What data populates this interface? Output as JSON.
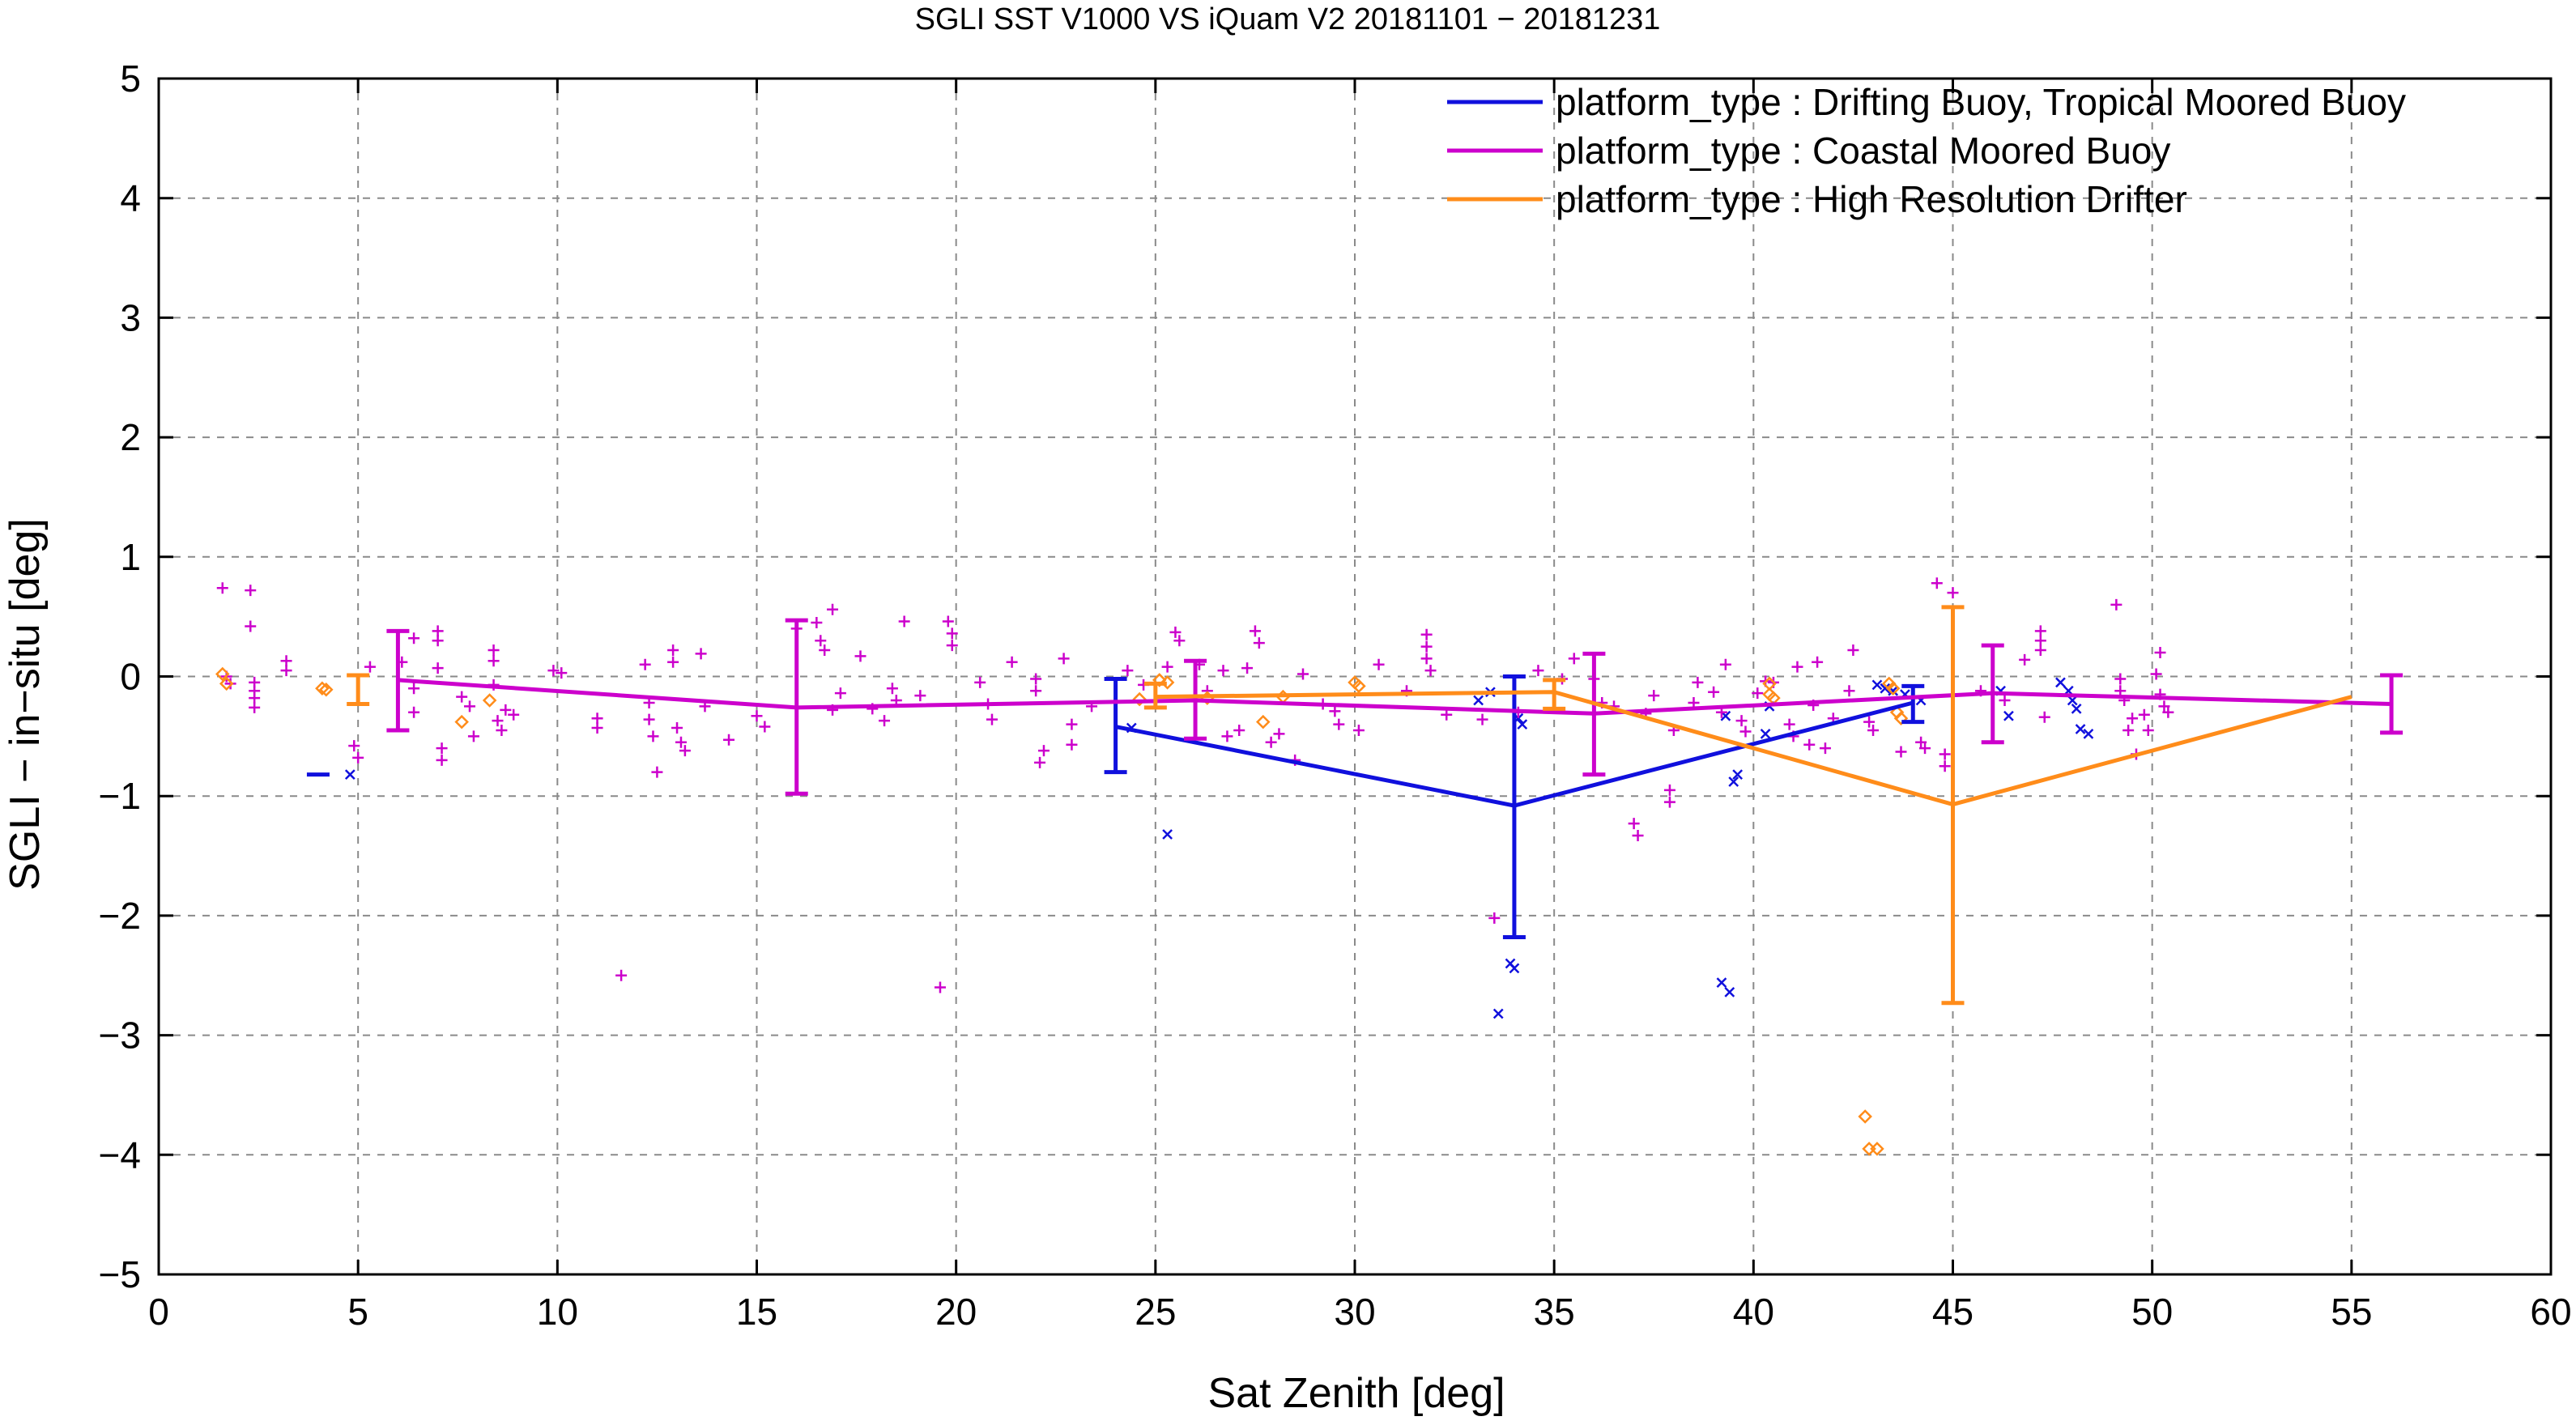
{
  "chart_data": {
    "type": "scatter",
    "title": "SGLI SST V1000 VS iQuam V2 20181101 − 20181231",
    "xlabel": "Sat Zenith [deg]",
    "ylabel": "SGLI − in−situ [deg]",
    "xlim": [
      0,
      60
    ],
    "ylim": [
      -5,
      5
    ],
    "grid": true,
    "legend_position": "top-right",
    "x_ticks": [
      0,
      5,
      10,
      15,
      20,
      25,
      30,
      35,
      40,
      45,
      50,
      55,
      60
    ],
    "x_tick_labels": [
      "0",
      "5",
      "10",
      "15",
      "20",
      "25",
      "30",
      "35",
      "40",
      "45",
      "50",
      "55",
      "60"
    ],
    "y_ticks": [
      -5,
      -4,
      -3,
      -2,
      -1,
      0,
      1,
      2,
      3,
      4,
      5
    ],
    "y_tick_labels": [
      "−5",
      "−4",
      "−3",
      "−2",
      "−1",
      "0",
      "1",
      "2",
      "3",
      "4",
      "5"
    ],
    "series": [
      {
        "name": "platform_type : Drifting Buoy, Tropical Moored Buoy",
        "color": "#1010dd",
        "marker": "x",
        "line": [
          [
            24,
            -0.42
          ],
          [
            34,
            -1.08
          ],
          [
            44,
            -0.22
          ]
        ],
        "errorbars": [
          {
            "x": 4.0,
            "low": -0.82,
            "high": -0.82
          },
          {
            "x": 24.0,
            "low": -0.8,
            "high": -0.02
          },
          {
            "x": 34.0,
            "low": -2.18,
            "high": 0.0
          },
          {
            "x": 44.0,
            "low": -0.38,
            "high": -0.08
          }
        ],
        "points": [
          [
            4.8,
            -0.82
          ],
          [
            24.4,
            -0.43
          ],
          [
            25.3,
            -1.32
          ],
          [
            33.1,
            -0.2
          ],
          [
            33.4,
            -0.13
          ],
          [
            33.6,
            -2.82
          ],
          [
            33.9,
            -2.4
          ],
          [
            34.0,
            -2.44
          ],
          [
            34.1,
            -0.35
          ],
          [
            34.2,
            -0.4
          ],
          [
            39.2,
            -2.56
          ],
          [
            39.4,
            -2.64
          ],
          [
            39.5,
            -0.88
          ],
          [
            39.6,
            -0.82
          ],
          [
            39.3,
            -0.33
          ],
          [
            40.3,
            -0.48
          ],
          [
            40.4,
            -0.25
          ],
          [
            43.1,
            -0.07
          ],
          [
            43.3,
            -0.1
          ],
          [
            43.5,
            -0.12
          ],
          [
            43.8,
            -0.15
          ],
          [
            44.2,
            -0.2
          ],
          [
            46.2,
            -0.12
          ],
          [
            46.4,
            -0.33
          ],
          [
            47.7,
            -0.05
          ],
          [
            47.9,
            -0.12
          ],
          [
            48.0,
            -0.2
          ],
          [
            48.1,
            -0.27
          ],
          [
            48.2,
            -0.44
          ],
          [
            48.4,
            -0.48
          ]
        ]
      },
      {
        "name": "platform_type : Coastal Moored Buoy",
        "color": "#cc00cc",
        "marker": "+",
        "line": [
          [
            6,
            -0.03
          ],
          [
            16,
            -0.26
          ],
          [
            26,
            -0.2
          ],
          [
            36,
            -0.31
          ],
          [
            46,
            -0.14
          ],
          [
            56,
            -0.23
          ]
        ],
        "errorbars": [
          {
            "x": 6.0,
            "low": -0.45,
            "high": 0.38
          },
          {
            "x": 16.0,
            "low": -0.98,
            "high": 0.47
          },
          {
            "x": 26.0,
            "low": -0.52,
            "high": 0.13
          },
          {
            "x": 36.0,
            "low": -0.82,
            "high": 0.19
          },
          {
            "x": 46.0,
            "low": -0.55,
            "high": 0.26
          },
          {
            "x": 56.0,
            "low": -0.47,
            "high": 0.01
          }
        ],
        "points": [
          [
            1.6,
            0.74
          ],
          [
            1.7,
            0.0
          ],
          [
            1.8,
            -0.06
          ],
          [
            2.3,
            0.72
          ],
          [
            2.3,
            0.42
          ],
          [
            2.4,
            -0.05
          ],
          [
            2.4,
            -0.12
          ],
          [
            2.4,
            -0.18
          ],
          [
            2.4,
            -0.26
          ],
          [
            3.2,
            0.13
          ],
          [
            3.2,
            0.05
          ],
          [
            4.9,
            -0.58
          ],
          [
            5.0,
            -0.68
          ],
          [
            5.3,
            0.08
          ],
          [
            6.1,
            0.12
          ],
          [
            6.4,
            0.32
          ],
          [
            6.4,
            -0.1
          ],
          [
            6.4,
            -0.3
          ],
          [
            7.0,
            0.38
          ],
          [
            7.0,
            0.3
          ],
          [
            7.0,
            0.07
          ],
          [
            7.1,
            -0.6
          ],
          [
            7.1,
            -0.7
          ],
          [
            7.6,
            -0.17
          ],
          [
            7.8,
            -0.25
          ],
          [
            7.9,
            -0.5
          ],
          [
            8.4,
            0.22
          ],
          [
            8.4,
            0.13
          ],
          [
            8.4,
            -0.07
          ],
          [
            8.5,
            -0.37
          ],
          [
            8.6,
            -0.45
          ],
          [
            8.7,
            -0.28
          ],
          [
            8.9,
            -0.32
          ],
          [
            9.9,
            0.05
          ],
          [
            10.1,
            0.03
          ],
          [
            11.0,
            -0.35
          ],
          [
            11.0,
            -0.43
          ],
          [
            11.6,
            -2.5
          ],
          [
            12.2,
            0.1
          ],
          [
            12.3,
            -0.22
          ],
          [
            12.3,
            -0.36
          ],
          [
            12.4,
            -0.5
          ],
          [
            12.5,
            -0.8
          ],
          [
            12.9,
            0.22
          ],
          [
            12.9,
            0.12
          ],
          [
            13.0,
            -0.43
          ],
          [
            13.1,
            -0.55
          ],
          [
            13.2,
            -0.62
          ],
          [
            13.6,
            0.19
          ],
          [
            13.7,
            -0.25
          ],
          [
            14.3,
            -0.53
          ],
          [
            15.0,
            -0.33
          ],
          [
            15.2,
            -0.42
          ],
          [
            16.0,
            0.4
          ],
          [
            16.5,
            0.45
          ],
          [
            16.6,
            0.3
          ],
          [
            16.7,
            0.22
          ],
          [
            16.9,
            0.56
          ],
          [
            16.9,
            -0.28
          ],
          [
            17.1,
            -0.14
          ],
          [
            17.6,
            0.17
          ],
          [
            17.9,
            -0.27
          ],
          [
            18.2,
            -0.37
          ],
          [
            18.4,
            -0.1
          ],
          [
            18.5,
            -0.2
          ],
          [
            18.7,
            0.46
          ],
          [
            19.1,
            -0.16
          ],
          [
            19.6,
            -2.6
          ],
          [
            19.8,
            0.46
          ],
          [
            19.9,
            0.36
          ],
          [
            19.9,
            0.26
          ],
          [
            20.6,
            -0.05
          ],
          [
            20.8,
            -0.23
          ],
          [
            20.9,
            -0.36
          ],
          [
            21.4,
            0.12
          ],
          [
            22.0,
            -0.02
          ],
          [
            22.0,
            -0.12
          ],
          [
            22.1,
            -0.72
          ],
          [
            22.2,
            -0.62
          ],
          [
            22.7,
            0.15
          ],
          [
            22.9,
            -0.4
          ],
          [
            22.9,
            -0.57
          ],
          [
            23.4,
            -0.25
          ],
          [
            24.3,
            0.05
          ],
          [
            24.7,
            -0.07
          ],
          [
            25.3,
            0.08
          ],
          [
            25.5,
            0.37
          ],
          [
            25.6,
            0.3
          ],
          [
            26.1,
            0.1
          ],
          [
            26.3,
            -0.12
          ],
          [
            26.7,
            0.05
          ],
          [
            26.8,
            -0.5
          ],
          [
            27.1,
            -0.45
          ],
          [
            27.3,
            0.07
          ],
          [
            27.5,
            0.38
          ],
          [
            27.6,
            0.28
          ],
          [
            27.9,
            -0.55
          ],
          [
            28.1,
            -0.48
          ],
          [
            28.5,
            -0.7
          ],
          [
            28.7,
            0.02
          ],
          [
            29.2,
            -0.23
          ],
          [
            29.5,
            -0.29
          ],
          [
            29.6,
            -0.4
          ],
          [
            30.1,
            -0.45
          ],
          [
            30.6,
            0.1
          ],
          [
            31.3,
            -0.12
          ],
          [
            31.8,
            0.35
          ],
          [
            31.8,
            0.25
          ],
          [
            31.8,
            0.15
          ],
          [
            31.9,
            0.05
          ],
          [
            32.3,
            -0.32
          ],
          [
            33.2,
            -0.36
          ],
          [
            33.5,
            -2.02
          ],
          [
            34.1,
            -0.3
          ],
          [
            34.6,
            0.05
          ],
          [
            35.2,
            -0.02
          ],
          [
            35.5,
            0.15
          ],
          [
            36.0,
            -0.02
          ],
          [
            36.2,
            -0.22
          ],
          [
            36.5,
            -0.25
          ],
          [
            37.0,
            -1.23
          ],
          [
            37.1,
            -1.33
          ],
          [
            37.3,
            -0.31
          ],
          [
            37.5,
            -0.16
          ],
          [
            37.9,
            -0.95
          ],
          [
            37.9,
            -1.05
          ],
          [
            38.0,
            -0.45
          ],
          [
            38.5,
            -0.22
          ],
          [
            38.6,
            -0.05
          ],
          [
            39.0,
            -0.13
          ],
          [
            39.2,
            -0.3
          ],
          [
            39.3,
            0.1
          ],
          [
            39.7,
            -0.37
          ],
          [
            39.8,
            -0.46
          ],
          [
            40.1,
            -0.14
          ],
          [
            40.3,
            -0.04
          ],
          [
            40.5,
            -0.05
          ],
          [
            40.9,
            -0.4
          ],
          [
            41.0,
            -0.5
          ],
          [
            41.1,
            0.08
          ],
          [
            41.4,
            -0.57
          ],
          [
            41.5,
            -0.24
          ],
          [
            41.6,
            0.12
          ],
          [
            41.8,
            -0.6
          ],
          [
            42.0,
            -0.35
          ],
          [
            42.4,
            -0.12
          ],
          [
            42.5,
            0.22
          ],
          [
            42.9,
            -0.38
          ],
          [
            43.0,
            -0.45
          ],
          [
            43.7,
            -0.63
          ],
          [
            44.2,
            -0.55
          ],
          [
            44.3,
            -0.6
          ],
          [
            44.6,
            0.78
          ],
          [
            44.8,
            -0.65
          ],
          [
            44.8,
            -0.75
          ],
          [
            45.0,
            0.7
          ],
          [
            45.7,
            -0.12
          ],
          [
            46.3,
            -0.2
          ],
          [
            46.8,
            0.14
          ],
          [
            47.2,
            0.38
          ],
          [
            47.2,
            0.3
          ],
          [
            47.2,
            0.22
          ],
          [
            47.3,
            -0.34
          ],
          [
            49.1,
            0.6
          ],
          [
            49.2,
            -0.02
          ],
          [
            49.2,
            -0.12
          ],
          [
            49.3,
            -0.2
          ],
          [
            49.4,
            -0.45
          ],
          [
            49.5,
            -0.35
          ],
          [
            49.6,
            -0.65
          ],
          [
            49.8,
            -0.32
          ],
          [
            49.9,
            -0.45
          ],
          [
            50.1,
            0.02
          ],
          [
            50.2,
            0.2
          ],
          [
            50.2,
            -0.15
          ],
          [
            50.3,
            -0.25
          ],
          [
            50.4,
            -0.3
          ]
        ]
      },
      {
        "name": "platform_type : High Resolution Drifter",
        "color": "#ff8c1a",
        "marker": "diamond",
        "line": [
          [
            25,
            -0.17
          ],
          [
            35,
            -0.13
          ],
          [
            45,
            -1.07
          ],
          [
            55,
            -0.17
          ]
        ],
        "errorbars": [
          {
            "x": 5.0,
            "low": -0.23,
            "high": 0.01
          },
          {
            "x": 25.0,
            "low": -0.26,
            "high": -0.06
          },
          {
            "x": 35.0,
            "low": -0.27,
            "high": -0.03
          },
          {
            "x": 45.0,
            "low": -2.73,
            "high": 0.58
          }
        ],
        "points": [
          [
            1.6,
            0.02
          ],
          [
            1.7,
            -0.06
          ],
          [
            4.1,
            -0.1
          ],
          [
            4.2,
            -0.11
          ],
          [
            7.6,
            -0.38
          ],
          [
            8.3,
            -0.2
          ],
          [
            24.6,
            -0.19
          ],
          [
            25.1,
            -0.03
          ],
          [
            25.3,
            -0.05
          ],
          [
            26.3,
            -0.18
          ],
          [
            27.7,
            -0.38
          ],
          [
            28.2,
            -0.17
          ],
          [
            30.0,
            -0.05
          ],
          [
            30.1,
            -0.08
          ],
          [
            40.4,
            -0.06
          ],
          [
            40.4,
            -0.15
          ],
          [
            40.5,
            -0.18
          ],
          [
            42.8,
            -3.68
          ],
          [
            42.9,
            -3.95
          ],
          [
            43.1,
            -3.95
          ],
          [
            43.4,
            -0.06
          ],
          [
            43.5,
            -0.1
          ],
          [
            43.6,
            -0.3
          ],
          [
            43.7,
            -0.35
          ]
        ]
      }
    ]
  }
}
